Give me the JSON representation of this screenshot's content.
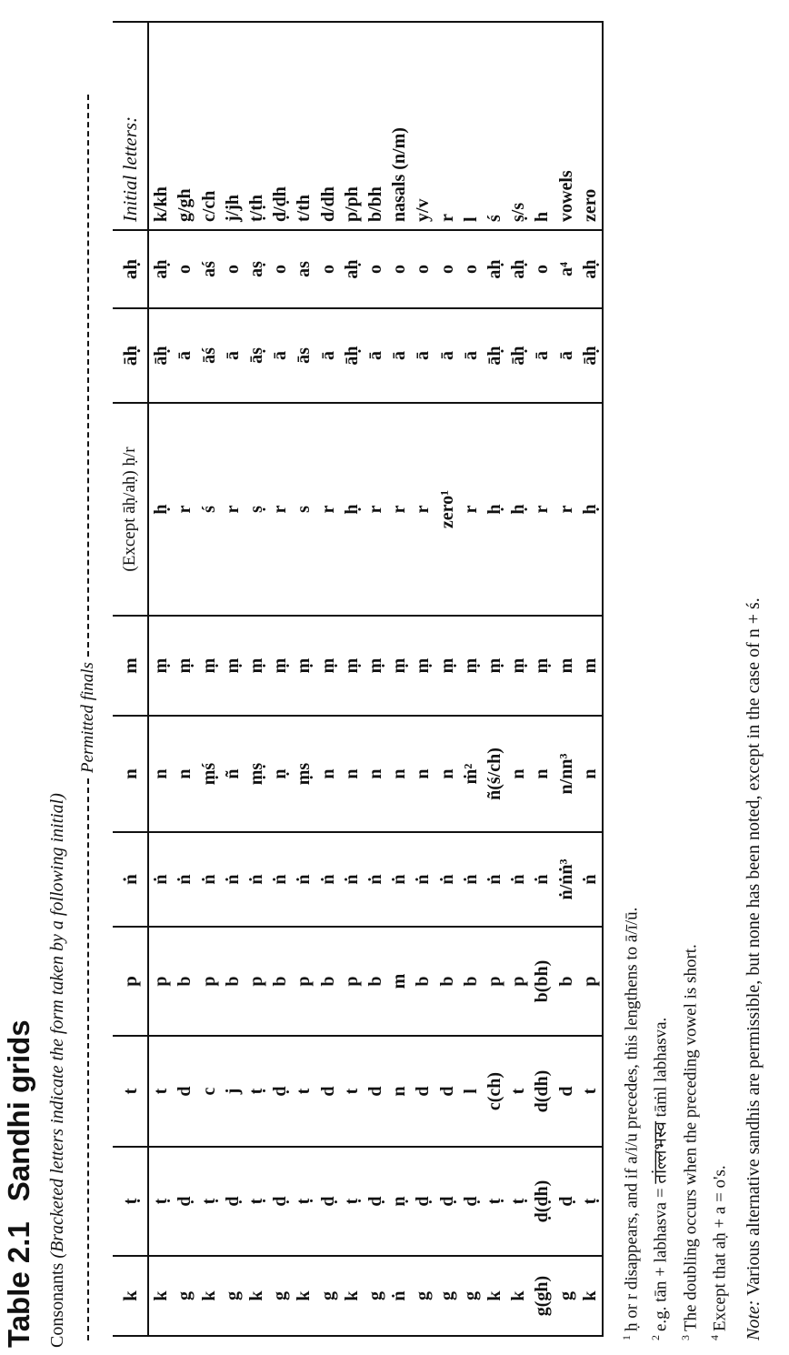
{
  "table": {
    "number": "Table 2.1",
    "title": "Sandhi grids",
    "subtitle_plain": "Consonants ",
    "subtitle_italic": "(Bracketed letters indicate the form taken by a following initial)",
    "permitted_label": "Permitted finals",
    "column_headers": [
      "k",
      "ṭ",
      "t",
      "p",
      "ṅ",
      "n",
      "m",
      "(Except āḥ/aḥ) ḥ/r",
      "āḥ",
      "aḥ",
      "Initial letters:"
    ],
    "rows": [
      [
        "k",
        "ṭ",
        "t",
        "p",
        "ṅ",
        "n",
        "ṃ",
        "ḥ",
        "āḥ",
        "aḥ",
        "k/kh"
      ],
      [
        "g",
        "ḍ",
        "d",
        "b",
        "ṅ",
        "n",
        "ṃ",
        "r",
        "ā",
        "o",
        "g/gh"
      ],
      [
        "k",
        "ṭ",
        "c",
        "p",
        "ṅ",
        "ṃś",
        "ṃ",
        "ś",
        "āś",
        "aś",
        "c/ch"
      ],
      [
        "g",
        "ḍ",
        "j",
        "b",
        "ṅ",
        "ñ",
        "ṃ",
        "r",
        "ā",
        "o",
        "j/jh"
      ],
      [
        "k",
        "ṭ",
        "ṭ",
        "p",
        "ṅ",
        "ṃṣ",
        "ṃ",
        "ṣ",
        "āṣ",
        "aṣ",
        "ṭ/ṭh"
      ],
      [
        "g",
        "ḍ",
        "ḍ",
        "b",
        "ṅ",
        "ṇ",
        "ṃ",
        "r",
        "ā",
        "o",
        "ḍ/ḍh"
      ],
      [
        "k",
        "ṭ",
        "t",
        "p",
        "ṅ",
        "ṃs",
        "ṃ",
        "s",
        "ās",
        "as",
        "t/th"
      ],
      [
        "g",
        "ḍ",
        "d",
        "b",
        "ṅ",
        "n",
        "ṃ",
        "r",
        "ā",
        "o",
        "d/dh"
      ],
      [
        "k",
        "ṭ",
        "t",
        "p",
        "ṅ",
        "n",
        "ṃ",
        "ḥ",
        "āḥ",
        "aḥ",
        "p/ph"
      ],
      [
        "g",
        "ḍ",
        "d",
        "b",
        "ṅ",
        "n",
        "ṃ",
        "r",
        "ā",
        "o",
        "b/bh"
      ],
      [
        "ṅ",
        "ṇ",
        "n",
        "m",
        "ṅ",
        "n",
        "ṃ",
        "r",
        "ā",
        "o",
        "nasals (n/m)"
      ],
      [
        "g",
        "ḍ",
        "d",
        "b",
        "ṅ",
        "n",
        "ṃ",
        "r",
        "ā",
        "o",
        "y/v"
      ],
      [
        "g",
        "ḍ",
        "d",
        "b",
        "ṅ",
        "n",
        "ṃ",
        "zero¹",
        "ā",
        "o",
        "r"
      ],
      [
        "g",
        "ḍ",
        "l",
        "b",
        "ṅ",
        "ṁ²",
        "ṃ",
        "r",
        "ā",
        "o",
        "l"
      ],
      [
        "k",
        "ṭ",
        "c(ch)",
        "p",
        "ṅ",
        "ñ(ś/ch)",
        "ṃ",
        "ḥ",
        "āḥ",
        "aḥ",
        "ś"
      ],
      [
        "k",
        "ṭ",
        "t",
        "p",
        "ṅ",
        "n",
        "ṃ",
        "ḥ",
        "āḥ",
        "aḥ",
        "ṣ/s"
      ],
      [
        "g(gh)",
        "ḍ(ḍh)",
        "d(dh)",
        "b(bh)",
        "ṅ",
        "n",
        "ṃ",
        "r",
        "ā",
        "o",
        "h"
      ],
      [
        "g",
        "ḍ",
        "d",
        "b",
        "ṅ/ṅṅ³",
        "n/nn³",
        "m",
        "r",
        "ā",
        "a⁴",
        "vowels"
      ],
      [
        "k",
        "ṭ",
        "t",
        "p",
        "ṅ",
        "n",
        "m",
        "ḥ",
        "āḥ",
        "aḥ",
        "zero"
      ]
    ]
  },
  "footnotes": [
    {
      "num": "1",
      "text": "ḥ or r disappears, and if a/i/u precedes, this lengthens to ā/ī/ū."
    },
    {
      "num": "2",
      "text": "e.g. tān + labhasva = तांल्लभस्व tāṁl labhasva."
    },
    {
      "num": "3",
      "text": "The doubling occurs when the preceding vowel is short."
    },
    {
      "num": "4",
      "text": "Except that aḥ + a = o's."
    }
  ],
  "note": {
    "label": "Note:",
    "text": " Various alternative sandhis are permissible, but none has been noted, except in the case of n + ś."
  }
}
